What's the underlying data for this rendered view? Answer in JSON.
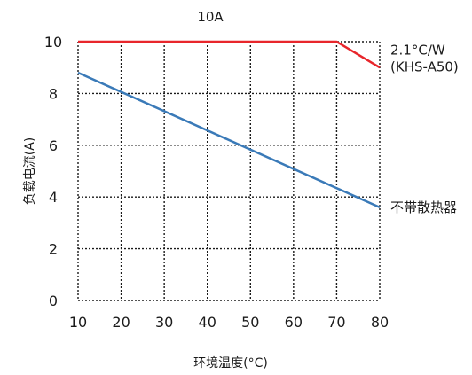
{
  "chart_data": {
    "type": "line",
    "title": "10A",
    "xlabel": "环境温度(°C)",
    "ylabel": "负载电流(A)",
    "xlim": [
      10,
      80
    ],
    "ylim": [
      0,
      10
    ],
    "x_ticks": [
      "10",
      "20",
      "30",
      "40",
      "50",
      "60",
      "70",
      "80"
    ],
    "y_ticks": [
      "0",
      "2",
      "4",
      "6",
      "8",
      "10"
    ],
    "grid": true,
    "series": [
      {
        "name": "2.1°C/W (KHS-A50)",
        "label_lines": [
          "2.1°C/W",
          "(KHS-A50)"
        ],
        "color": "#e8262b",
        "x": [
          10,
          70,
          80
        ],
        "y": [
          10,
          10,
          9
        ]
      },
      {
        "name": "不带散热器",
        "label_lines": [
          "不带散热器"
        ],
        "color": "#3a7ab8",
        "x": [
          10,
          80
        ],
        "y": [
          8.8,
          3.6
        ]
      }
    ]
  }
}
